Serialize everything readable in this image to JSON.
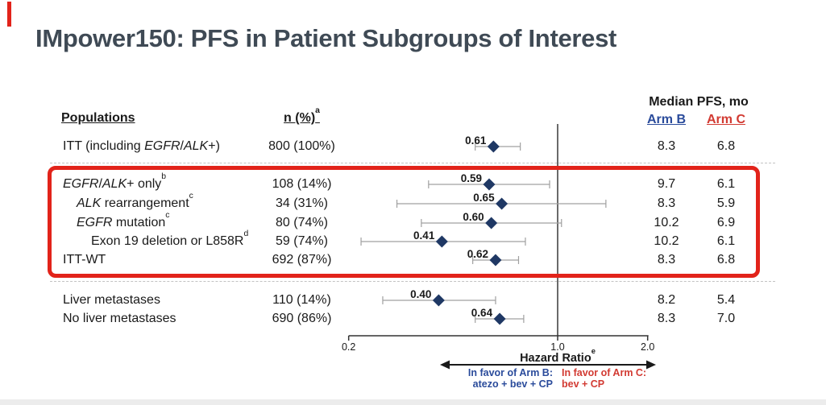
{
  "title": "IMpower150: PFS in Patient Subgroups of Interest",
  "header": {
    "populations": "Populations",
    "n_label": "n (%)",
    "n_sup": "a",
    "median_pfs": "Median PFS, mo",
    "arm_b": "Arm B",
    "arm_c": "Arm C"
  },
  "chart_data": {
    "type": "forest",
    "x_scale": "log",
    "xlabel": "Hazard Ratio",
    "xlabel_sup": "e",
    "x_ticks": [
      "0.2",
      "1.0",
      "2.0"
    ],
    "x_tick_values": [
      0.2,
      1.0,
      2.0
    ],
    "x_range": [
      0.2,
      2.0
    ],
    "ref_line": 1.0,
    "rows": [
      {
        "population": [
          {
            "t": "ITT (including "
          },
          {
            "t": "EGFR",
            "i": true
          },
          {
            "t": "/"
          },
          {
            "t": "ALK",
            "i": true
          },
          {
            "t": "+)"
          }
        ],
        "n": "800 (100%)",
        "hr": 0.61,
        "hr_label": "0.61",
        "ci": [
          0.53,
          0.75
        ],
        "arm_b": "8.3",
        "arm_c": "6.8",
        "indent": 0,
        "highlighted": false
      },
      {
        "population": [
          {
            "t": "EGFR",
            "i": true
          },
          {
            "t": "/"
          },
          {
            "t": "ALK",
            "i": true
          },
          {
            "t": "+ only"
          },
          {
            "t": "b",
            "sup": true
          }
        ],
        "n": "108 (14%)",
        "hr": 0.59,
        "hr_label": "0.59",
        "ci": [
          0.37,
          0.94
        ],
        "arm_b": "9.7",
        "arm_c": "6.1",
        "indent": 0,
        "highlighted": true
      },
      {
        "population": [
          {
            "t": "ALK",
            "i": true
          },
          {
            "t": " rearrangement"
          },
          {
            "t": "c",
            "sup": true
          }
        ],
        "n": "34 (31%)",
        "hr": 0.65,
        "hr_label": "0.65",
        "ci": [
          0.29,
          1.45
        ],
        "arm_b": "8.3",
        "arm_c": "5.9",
        "indent": 1,
        "highlighted": true
      },
      {
        "population": [
          {
            "t": "EGFR",
            "i": true
          },
          {
            "t": " mutation"
          },
          {
            "t": "c",
            "sup": true
          }
        ],
        "n": "80 (74%)",
        "hr": 0.6,
        "hr_label": "0.60",
        "ci": [
          0.35,
          1.03
        ],
        "arm_b": "10.2",
        "arm_c": "6.9",
        "indent": 1,
        "highlighted": true
      },
      {
        "population": [
          {
            "t": "Exon 19 deletion or L858R"
          },
          {
            "t": "d",
            "sup": true
          }
        ],
        "n": "59 (74%)",
        "hr": 0.41,
        "hr_label": "0.41",
        "ci": [
          0.22,
          0.78
        ],
        "arm_b": "10.2",
        "arm_c": "6.1",
        "indent": 2,
        "highlighted": true
      },
      {
        "population": [
          {
            "t": "ITT-WT"
          }
        ],
        "n": "692 (87%)",
        "hr": 0.62,
        "hr_label": "0.62",
        "ci": [
          0.52,
          0.74
        ],
        "arm_b": "8.3",
        "arm_c": "6.8",
        "indent": 0,
        "highlighted": true
      },
      {
        "population": [
          {
            "t": "Liver metastases"
          }
        ],
        "n": "110 (14%)",
        "hr": 0.4,
        "hr_label": "0.40",
        "ci": [
          0.26,
          0.62
        ],
        "arm_b": "8.2",
        "arm_c": "5.4",
        "indent": 0,
        "highlighted": false
      },
      {
        "population": [
          {
            "t": "No liver metastases"
          }
        ],
        "n": "690 (86%)",
        "hr": 0.64,
        "hr_label": "0.64",
        "ci": [
          0.53,
          0.77
        ],
        "arm_b": "8.3",
        "arm_c": "7.0",
        "indent": 0,
        "highlighted": false
      }
    ]
  },
  "legend": {
    "favor_b_line1": "In favor of Arm B:",
    "favor_b_line2": "atezo + bev + CP",
    "favor_c_line1": "In favor of Arm C:",
    "favor_c_line2": "bev + CP"
  },
  "colors": {
    "accent_red": "#e2231a",
    "arm_b_blue": "#2a4b9b",
    "arm_c_red": "#d23a32",
    "diamond_navy": "#1f3864",
    "title_gray": "#3f4a55",
    "ref_line_gray": "#6a6a6a",
    "whisker_gray": "#a0a0a0"
  }
}
